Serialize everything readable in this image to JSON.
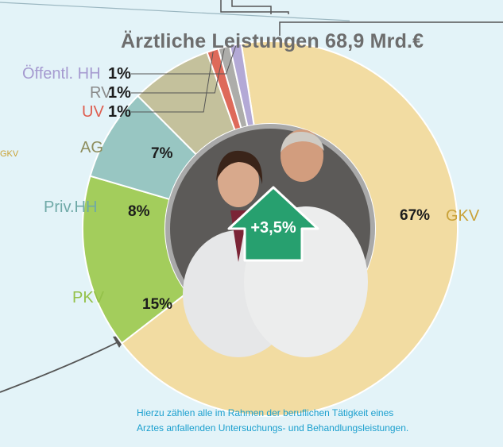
{
  "header": {
    "title": "Ärztliche Leistungen 68,9 Mrd.€",
    "edge_text": "GKV"
  },
  "chart_data": {
    "type": "pie",
    "title": "Ärztliche Leistungen 68,9 Mrd.€",
    "slices": [
      {
        "label": "GKV",
        "value": 67,
        "value_label": "67%",
        "color": "#f2dca2",
        "label_color": "#c9a23a"
      },
      {
        "label": "PKV",
        "value": 15,
        "value_label": "15%",
        "color": "#a3cd5c",
        "label_color": "#94c14a"
      },
      {
        "label": "Priv.HH",
        "value": 8,
        "value_label": "8%",
        "color": "#98c6c2",
        "label_color": "#6fa9a7"
      },
      {
        "label": "AG",
        "value": 7,
        "value_label": "7%",
        "color": "#c4c19c",
        "label_color": "#8e8e5e"
      },
      {
        "label": "UV",
        "value": 1,
        "value_label": "1%",
        "color": "#de6a5a",
        "label_color": "#de5d4f"
      },
      {
        "label": "RV",
        "value": 1,
        "value_label": "1%",
        "color": "#adadaa",
        "label_color": "#8a8a8a"
      },
      {
        "label": "Öffentl. HH",
        "value": 1,
        "value_label": "1%",
        "color": "#b3a9d6",
        "label_color": "#a59ad0"
      }
    ],
    "center_annotation": "+3,5%",
    "growth_color": "#27a06f"
  },
  "footnote": {
    "line1": "Hierzu zählen alle im Rahmen der beruflichen Tätigkeit eines",
    "line2": "Arztes anfallenden Untersuchungs- und Behandlungsleistungen."
  }
}
